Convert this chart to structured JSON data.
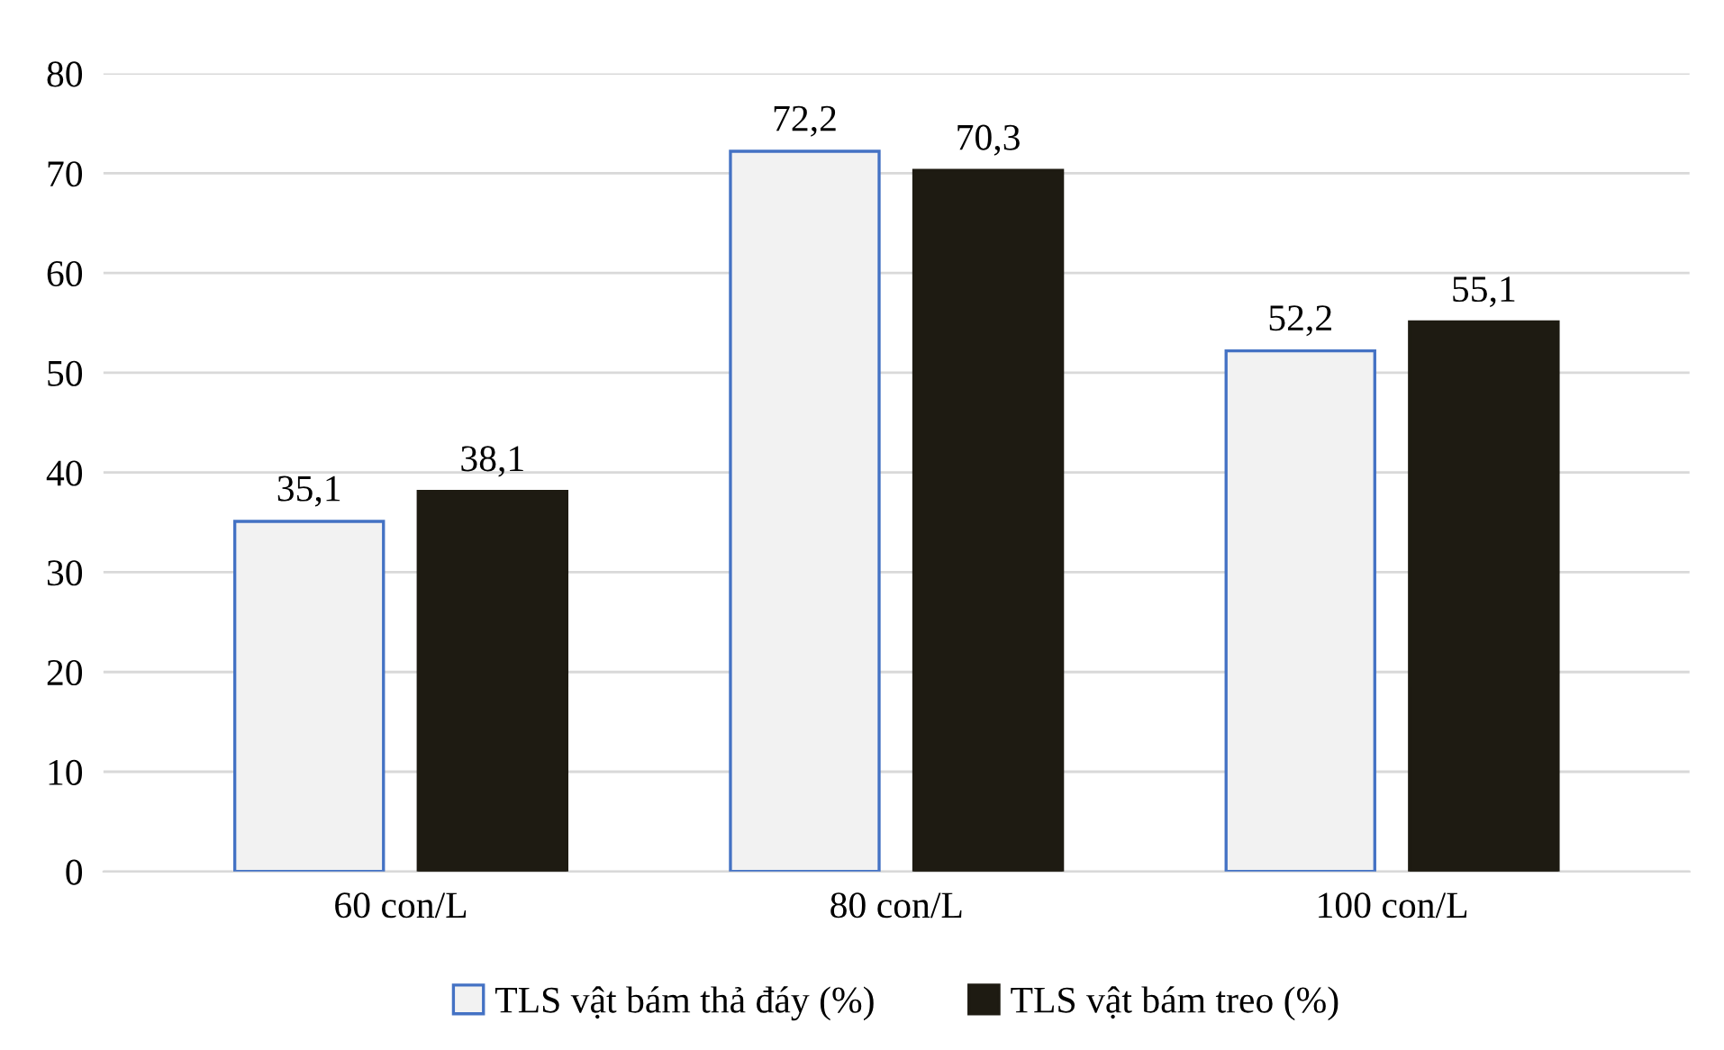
{
  "chart_data": {
    "type": "bar",
    "categories": [
      "60 con/L",
      "80 con/L",
      "100 con/L"
    ],
    "series": [
      {
        "name": "TLS vật bám thả đáy (%)",
        "color": "#f2f2f2",
        "values": [
          35.1,
          72.2,
          52.2
        ],
        "value_labels": [
          "35,1",
          "72,2",
          "52,2"
        ]
      },
      {
        "name": "TLS vật bám treo (%)",
        "color": "#1e1b12",
        "values": [
          38.1,
          70.3,
          55.1
        ],
        "value_labels": [
          "38,1",
          "70,3",
          "55,1"
        ]
      }
    ],
    "ylim": [
      0,
      80
    ],
    "yticks": [
      0,
      10,
      20,
      30,
      40,
      50,
      60,
      70,
      80
    ],
    "grid": "y",
    "legend": "bottom"
  }
}
